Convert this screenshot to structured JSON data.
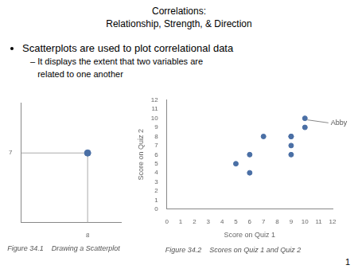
{
  "title": "Correlations:",
  "subtitle": "Relationship,  Strength,  & Direction",
  "annotations": [
    "Scatterplots are used to plot correlational data",
    "– It displays the extent that two variables are",
    "   related to one another",
    "1"
  ],
  "chart_data": [
    {
      "type": "scatter",
      "title": "Figure 34.1    Drawing a Scatterplot",
      "x": [
        8
      ],
      "values": [
        7
      ],
      "color": "#4a6fa5",
      "xlim": [
        0,
        12
      ],
      "ylim": [
        0,
        12
      ],
      "xticks": [
        8
      ],
      "yticks": [
        7
      ],
      "grid": false
    },
    {
      "type": "scatter",
      "title": "Figure 34.2    Scores on Quiz 1 and Quiz 2",
      "x_label": "Score on Quiz 1",
      "y_label": "Score on Quiz 2",
      "x": [
        5,
        6,
        6,
        7,
        9,
        9,
        10,
        9,
        9,
        10
      ],
      "values": [
        5,
        6,
        4,
        8,
        8,
        6,
        10,
        8,
        7,
        9
      ],
      "color": "#4a6fa5",
      "xlim": [
        0,
        12
      ],
      "ylim": [
        0,
        12
      ],
      "xticks": [
        0,
        1,
        2,
        3,
        4,
        5,
        6,
        7,
        8,
        9,
        10,
        11,
        12
      ],
      "yticks": [
        0,
        1,
        2,
        3,
        4,
        5,
        6,
        7,
        8,
        9,
        10,
        11,
        12
      ],
      "grid": false,
      "annotations": [
        {
          "text": "Abby",
          "x": 11.7,
          "y": 9.5,
          "point_x": 10,
          "point_y": 10
        }
      ]
    }
  ]
}
